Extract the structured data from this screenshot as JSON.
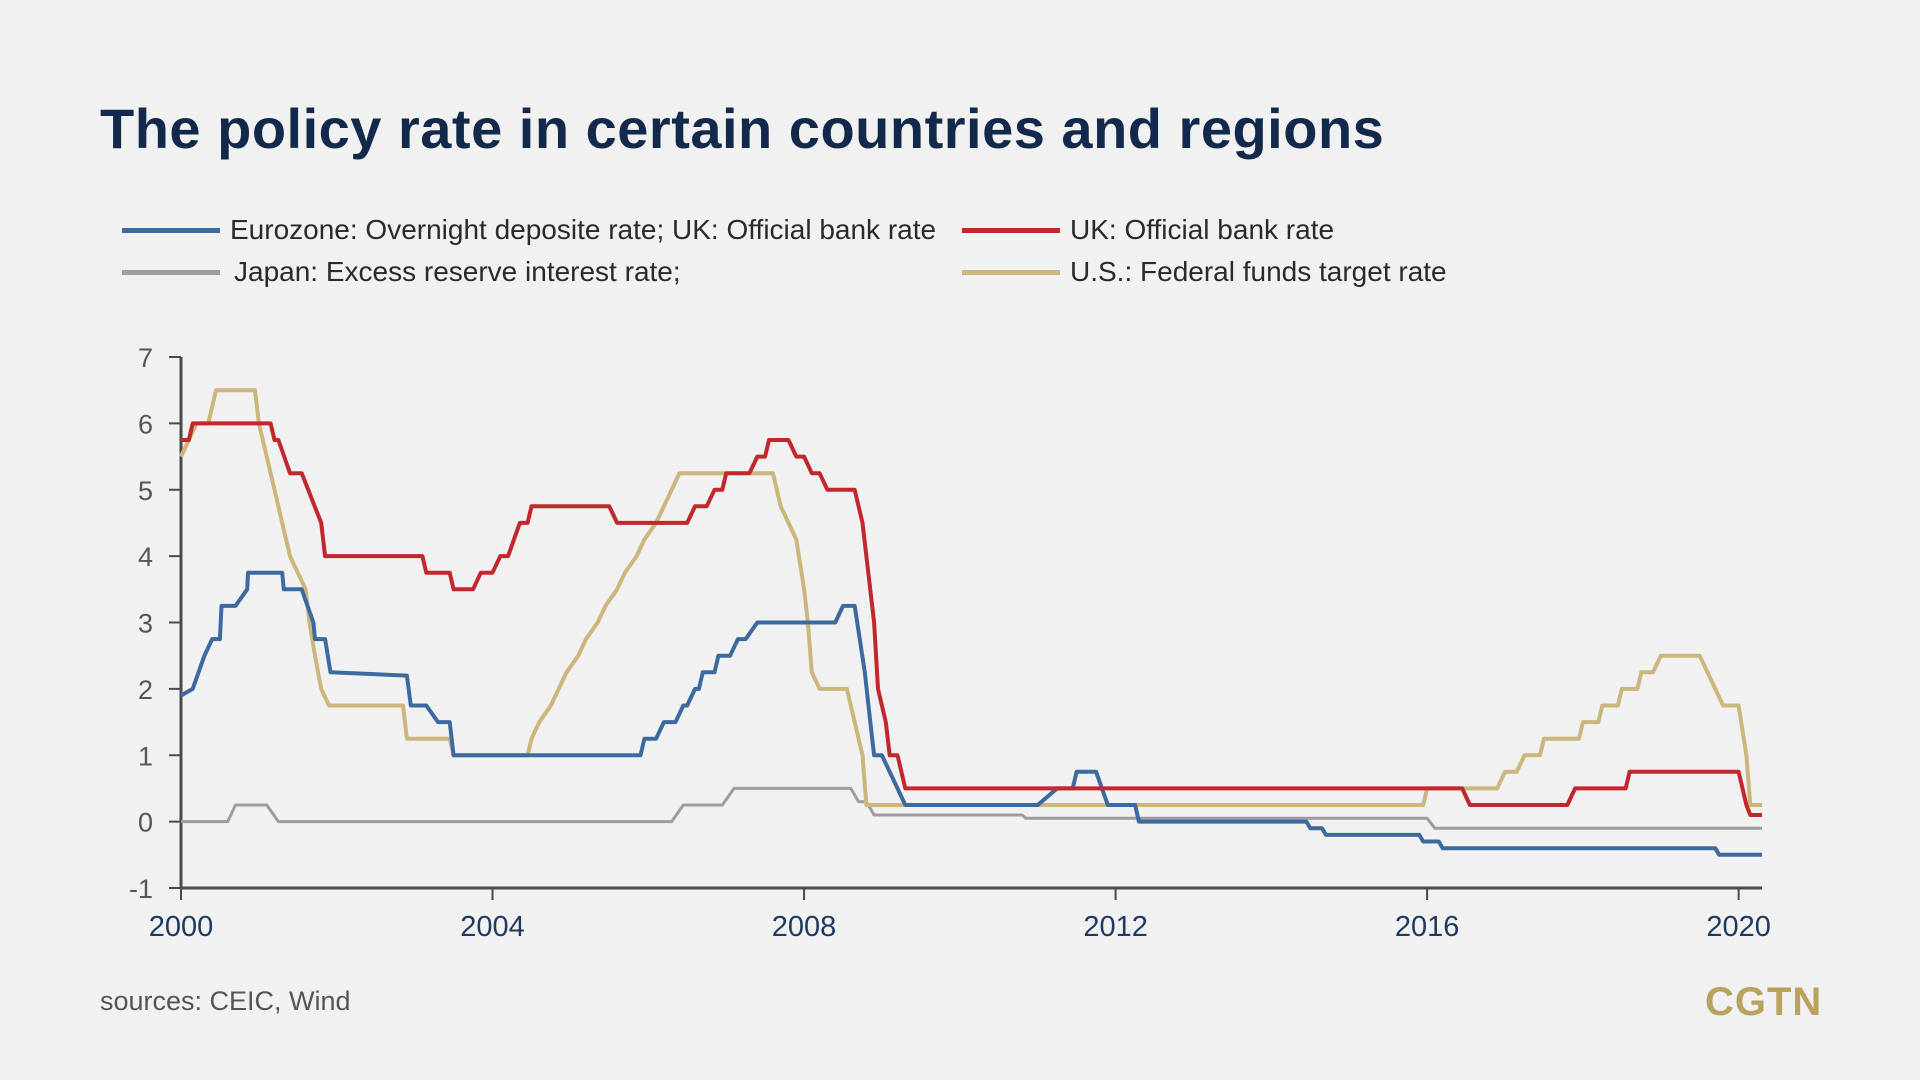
{
  "title": "The policy rate in certain countries and regions",
  "legend": [
    {
      "label": "Eurozone: Overnight deposite rate; UK: Official bank rate",
      "color": "#3d6a9e"
    },
    {
      "label": "UK: Official bank rate",
      "color": "#c1272d"
    },
    {
      "label": "Japan: Excess reserve interest rate;",
      "color": "#9d9d9d"
    },
    {
      "label": "U.S.: Federal funds target rate",
      "color": "#cbb67c"
    }
  ],
  "sources": "sources: CEIC, Wind",
  "logo": "CGTN",
  "chart_data": {
    "type": "line",
    "title": "The policy rate in certain countries and regions",
    "xlabel": "",
    "ylabel": "",
    "xlim": [
      2000,
      2020.3
    ],
    "ylim": [
      -1,
      7
    ],
    "x_ticks": [
      2000,
      2004,
      2008,
      2012,
      2016,
      2020
    ],
    "y_ticks": [
      7,
      6,
      5,
      4,
      3,
      2,
      1,
      0,
      -1
    ],
    "grid": false,
    "legend_position": "top",
    "series": [
      {
        "name": "Eurozone: Overnight deposite rate; UK: Official bank rate",
        "color": "#3d6a9e",
        "points": [
          [
            2000.0,
            1.9
          ],
          [
            2000.15,
            2.0
          ],
          [
            2000.3,
            2.5
          ],
          [
            2000.4,
            2.75
          ],
          [
            2000.5,
            2.75
          ],
          [
            2000.52,
            3.25
          ],
          [
            2000.7,
            3.25
          ],
          [
            2000.85,
            3.5
          ],
          [
            2000.86,
            3.75
          ],
          [
            2001.3,
            3.75
          ],
          [
            2001.32,
            3.5
          ],
          [
            2001.55,
            3.5
          ],
          [
            2001.7,
            3.0
          ],
          [
            2001.72,
            2.75
          ],
          [
            2001.85,
            2.75
          ],
          [
            2001.92,
            2.25
          ],
          [
            2002.9,
            2.2
          ],
          [
            2002.95,
            1.75
          ],
          [
            2003.15,
            1.75
          ],
          [
            2003.3,
            1.5
          ],
          [
            2003.45,
            1.5
          ],
          [
            2003.5,
            1.0
          ],
          [
            2005.9,
            1.0
          ],
          [
            2005.95,
            1.25
          ],
          [
            2006.1,
            1.25
          ],
          [
            2006.2,
            1.5
          ],
          [
            2006.35,
            1.5
          ],
          [
            2006.45,
            1.75
          ],
          [
            2006.5,
            1.75
          ],
          [
            2006.6,
            2.0
          ],
          [
            2006.65,
            2.0
          ],
          [
            2006.7,
            2.25
          ],
          [
            2006.85,
            2.25
          ],
          [
            2006.9,
            2.5
          ],
          [
            2007.05,
            2.5
          ],
          [
            2007.15,
            2.75
          ],
          [
            2007.25,
            2.75
          ],
          [
            2007.4,
            3.0
          ],
          [
            2008.4,
            3.0
          ],
          [
            2008.5,
            3.25
          ],
          [
            2008.65,
            3.25
          ],
          [
            2008.78,
            2.25
          ],
          [
            2008.85,
            1.5
          ],
          [
            2008.9,
            1.0
          ],
          [
            2009.0,
            1.0
          ],
          [
            2009.2,
            0.5
          ],
          [
            2009.3,
            0.25
          ],
          [
            2011.0,
            0.25
          ],
          [
            2011.25,
            0.5
          ],
          [
            2011.45,
            0.5
          ],
          [
            2011.5,
            0.75
          ],
          [
            2011.75,
            0.75
          ],
          [
            2011.9,
            0.25
          ],
          [
            2012.25,
            0.25
          ],
          [
            2012.3,
            0.0
          ],
          [
            2014.45,
            0.0
          ],
          [
            2014.5,
            -0.1
          ],
          [
            2014.65,
            -0.1
          ],
          [
            2014.7,
            -0.2
          ],
          [
            2015.9,
            -0.2
          ],
          [
            2015.95,
            -0.3
          ],
          [
            2016.15,
            -0.3
          ],
          [
            2016.2,
            -0.4
          ],
          [
            2019.7,
            -0.4
          ],
          [
            2019.75,
            -0.5
          ],
          [
            2020.3,
            -0.5
          ]
        ]
      },
      {
        "name": "UK: Official bank rate",
        "color": "#c1272d",
        "points": [
          [
            2000.0,
            5.75
          ],
          [
            2000.1,
            5.75
          ],
          [
            2000.15,
            6.0
          ],
          [
            2001.15,
            6.0
          ],
          [
            2001.2,
            5.75
          ],
          [
            2001.25,
            5.75
          ],
          [
            2001.4,
            5.25
          ],
          [
            2001.55,
            5.25
          ],
          [
            2001.8,
            4.5
          ],
          [
            2001.85,
            4.0
          ],
          [
            2003.1,
            4.0
          ],
          [
            2003.15,
            3.75
          ],
          [
            2003.45,
            3.75
          ],
          [
            2003.5,
            3.5
          ],
          [
            2003.75,
            3.5
          ],
          [
            2003.85,
            3.75
          ],
          [
            2004.0,
            3.75
          ],
          [
            2004.1,
            4.0
          ],
          [
            2004.2,
            4.0
          ],
          [
            2004.35,
            4.5
          ],
          [
            2004.45,
            4.5
          ],
          [
            2004.5,
            4.75
          ],
          [
            2005.5,
            4.75
          ],
          [
            2005.6,
            4.5
          ],
          [
            2006.5,
            4.5
          ],
          [
            2006.6,
            4.75
          ],
          [
            2006.75,
            4.75
          ],
          [
            2006.85,
            5.0
          ],
          [
            2006.95,
            5.0
          ],
          [
            2007.0,
            5.25
          ],
          [
            2007.3,
            5.25
          ],
          [
            2007.4,
            5.5
          ],
          [
            2007.5,
            5.5
          ],
          [
            2007.55,
            5.75
          ],
          [
            2007.8,
            5.75
          ],
          [
            2007.9,
            5.5
          ],
          [
            2008.0,
            5.5
          ],
          [
            2008.1,
            5.25
          ],
          [
            2008.2,
            5.25
          ],
          [
            2008.3,
            5.0
          ],
          [
            2008.65,
            5.0
          ],
          [
            2008.75,
            4.5
          ],
          [
            2008.9,
            3.0
          ],
          [
            2008.95,
            2.0
          ],
          [
            2009.05,
            1.5
          ],
          [
            2009.1,
            1.0
          ],
          [
            2009.2,
            1.0
          ],
          [
            2009.3,
            0.5
          ],
          [
            2016.45,
            0.5
          ],
          [
            2016.55,
            0.25
          ],
          [
            2017.8,
            0.25
          ],
          [
            2017.9,
            0.5
          ],
          [
            2018.55,
            0.5
          ],
          [
            2018.6,
            0.75
          ],
          [
            2020.0,
            0.75
          ],
          [
            2020.1,
            0.25
          ],
          [
            2020.15,
            0.1
          ],
          [
            2020.3,
            0.1
          ]
        ]
      },
      {
        "name": "Japan: Excess reserve interest rate;",
        "color": "#9d9d9d",
        "points": [
          [
            2000.0,
            0.0
          ],
          [
            2000.6,
            0.0
          ],
          [
            2000.7,
            0.25
          ],
          [
            2001.1,
            0.25
          ],
          [
            2001.25,
            0.0
          ],
          [
            2006.3,
            0.0
          ],
          [
            2006.45,
            0.25
          ],
          [
            2006.95,
            0.25
          ],
          [
            2007.1,
            0.5
          ],
          [
            2008.6,
            0.5
          ],
          [
            2008.7,
            0.3
          ],
          [
            2008.8,
            0.3
          ],
          [
            2008.9,
            0.1
          ],
          [
            2010.8,
            0.1
          ],
          [
            2010.85,
            0.05
          ],
          [
            2016.0,
            0.05
          ],
          [
            2016.1,
            -0.1
          ],
          [
            2020.3,
            -0.1
          ]
        ]
      },
      {
        "name": "U.S.: Federal funds target rate",
        "color": "#cbb67c",
        "points": [
          [
            2000.0,
            5.5
          ],
          [
            2000.1,
            5.75
          ],
          [
            2000.2,
            6.0
          ],
          [
            2000.35,
            6.0
          ],
          [
            2000.45,
            6.5
          ],
          [
            2000.95,
            6.5
          ],
          [
            2001.0,
            6.0
          ],
          [
            2001.1,
            5.5
          ],
          [
            2001.2,
            5.0
          ],
          [
            2001.3,
            4.5
          ],
          [
            2001.4,
            4.0
          ],
          [
            2001.5,
            3.75
          ],
          [
            2001.6,
            3.5
          ],
          [
            2001.65,
            3.0
          ],
          [
            2001.72,
            2.5
          ],
          [
            2001.8,
            2.0
          ],
          [
            2001.9,
            1.75
          ],
          [
            2002.85,
            1.75
          ],
          [
            2002.9,
            1.25
          ],
          [
            2003.45,
            1.25
          ],
          [
            2003.5,
            1.0
          ],
          [
            2004.45,
            1.0
          ],
          [
            2004.5,
            1.25
          ],
          [
            2004.6,
            1.5
          ],
          [
            2004.75,
            1.75
          ],
          [
            2004.85,
            2.0
          ],
          [
            2004.95,
            2.25
          ],
          [
            2005.1,
            2.5
          ],
          [
            2005.2,
            2.75
          ],
          [
            2005.35,
            3.0
          ],
          [
            2005.45,
            3.25
          ],
          [
            2005.6,
            3.5
          ],
          [
            2005.7,
            3.75
          ],
          [
            2005.85,
            4.0
          ],
          [
            2005.95,
            4.25
          ],
          [
            2006.1,
            4.5
          ],
          [
            2006.2,
            4.75
          ],
          [
            2006.3,
            5.0
          ],
          [
            2006.4,
            5.25
          ],
          [
            2007.6,
            5.25
          ],
          [
            2007.7,
            4.75
          ],
          [
            2007.8,
            4.5
          ],
          [
            2007.9,
            4.25
          ],
          [
            2008.0,
            3.5
          ],
          [
            2008.05,
            3.0
          ],
          [
            2008.1,
            2.25
          ],
          [
            2008.2,
            2.0
          ],
          [
            2008.55,
            2.0
          ],
          [
            2008.65,
            1.5
          ],
          [
            2008.75,
            1.0
          ],
          [
            2008.8,
            0.25
          ],
          [
            2015.95,
            0.25
          ],
          [
            2016.0,
            0.5
          ],
          [
            2016.9,
            0.5
          ],
          [
            2017.0,
            0.75
          ],
          [
            2017.15,
            0.75
          ],
          [
            2017.25,
            1.0
          ],
          [
            2017.45,
            1.0
          ],
          [
            2017.5,
            1.25
          ],
          [
            2017.95,
            1.25
          ],
          [
            2018.0,
            1.5
          ],
          [
            2018.2,
            1.5
          ],
          [
            2018.25,
            1.75
          ],
          [
            2018.45,
            1.75
          ],
          [
            2018.5,
            2.0
          ],
          [
            2018.7,
            2.0
          ],
          [
            2018.75,
            2.25
          ],
          [
            2018.9,
            2.25
          ],
          [
            2019.0,
            2.5
          ],
          [
            2019.5,
            2.5
          ],
          [
            2019.6,
            2.25
          ],
          [
            2019.7,
            2.0
          ],
          [
            2019.8,
            1.75
          ],
          [
            2020.0,
            1.75
          ],
          [
            2020.1,
            1.0
          ],
          [
            2020.15,
            0.25
          ],
          [
            2020.3,
            0.25
          ]
        ]
      }
    ]
  }
}
